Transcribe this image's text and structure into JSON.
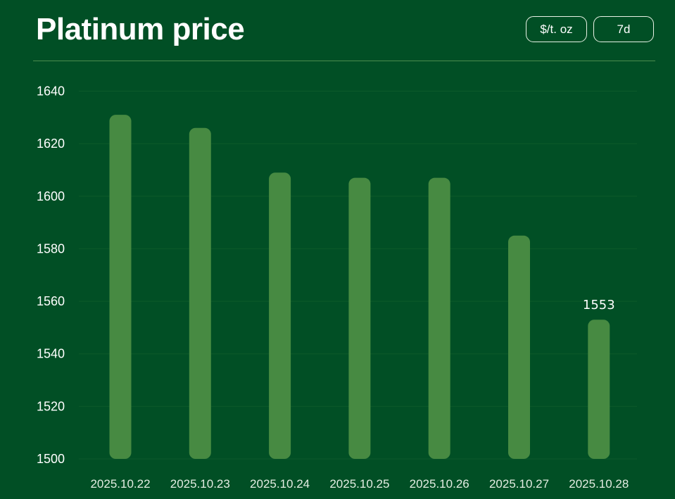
{
  "header": {
    "title": "Platinum price",
    "unit_button": "$/t. oz",
    "range_button": "7d"
  },
  "colors": {
    "background": "#014f25",
    "bar": "#478a42",
    "grid": "#0d5a2a",
    "text": "#ffffff"
  },
  "chart_data": {
    "type": "bar",
    "categories": [
      "2025.10.22",
      "2025.10.23",
      "2025.10.24",
      "2025.10.25",
      "2025.10.26",
      "2025.10.27",
      "2025.10.28"
    ],
    "values": [
      1631,
      1626,
      1609,
      1607,
      1607,
      1585,
      1553
    ],
    "ylim": [
      1500,
      1640
    ],
    "yticks": [
      1500,
      1520,
      1540,
      1560,
      1580,
      1600,
      1620,
      1640
    ],
    "grid": true,
    "data_labels": [
      {
        "category": "2025.10.28",
        "text": "1553"
      }
    ]
  }
}
